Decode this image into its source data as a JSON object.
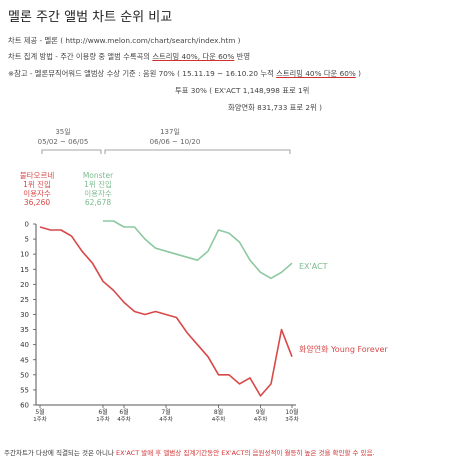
{
  "title": "멜론 주간 앨범 차트 순위 비교",
  "info": {
    "source_label": "차트 제공 - 멜론",
    "source_url": "( http://www.melon.com/chart/search/index.htm )",
    "method_prefix": "차트 집계 방법 - 주간 이용량 중 앨범 수록곡의 ",
    "method_underlined": "스트리밍 40%, 다운 60%",
    "method_suffix": " 반영",
    "note_prefix": "※참고 - 멜론뮤직어워드 앨범상 수상 기준 : 음원 70% ( 15.11.19 ~ 16.10.20 누적 ",
    "note_underlined": "스트리밍 40% 다운 60%",
    "note_suffix": " )",
    "vote_line": "투표 30% (  EX'ACT 1,148,998 표로 1위",
    "vote_line2": "화양연화   831,733 표로 2위 )"
  },
  "annotations": {
    "period1_weeks": "35일",
    "period1_range": "05/02 ~ 06/05",
    "period2_weeks": "137일",
    "period2_range": "06/06 ~ 10/20",
    "album1_name": "불타오르네",
    "album1_rank": "1위 진입",
    "album1_users_label": "이용자수",
    "album1_users": "36,260",
    "album2_name": "Monster",
    "album2_rank": "1위 진입",
    "album2_users_label": "이용자수",
    "album2_users": "62,678"
  },
  "footer": {
    "prefix": "주간차트가 다상에 직결되는 것은 아니나 ",
    "highlight": "EX'ACT 발매 후 앨범상 집계기간동안 EX'ACT의 음원성적이 월등히 높은 것을 확인할 수 있음."
  },
  "colors": {
    "red": "#d84848",
    "green": "#8cc8a0",
    "axis": "#555555"
  },
  "chart_data": {
    "type": "line",
    "y_inverted": true,
    "ylim": [
      0,
      60
    ],
    "ytick_labels": [
      "0",
      "5",
      "10",
      "15",
      "20",
      "25",
      "30",
      "35",
      "40",
      "45",
      "50",
      "55",
      "60"
    ],
    "xtick_labels": [
      {
        "month": "5월",
        "week": "1주차"
      },
      {
        "month": "6월",
        "week": "1주차"
      },
      {
        "month": "6월",
        "week": "4주차"
      },
      {
        "month": "7월",
        "week": "4주차"
      },
      {
        "month": "8월",
        "week": "4주차"
      },
      {
        "month": "9월",
        "week": "4주차"
      },
      {
        "month": "10월",
        "week": "3주차"
      }
    ],
    "series": [
      {
        "name": "화양연화 Young Forever",
        "color": "#d84848",
        "x": [
          0,
          1,
          2,
          3,
          4,
          5,
          6,
          7,
          8,
          9,
          10,
          11,
          12,
          13,
          14,
          15,
          16,
          17,
          18,
          19,
          20,
          21,
          22,
          23,
          24
        ],
        "values": [
          1,
          2,
          2,
          4,
          9,
          13,
          19,
          22,
          26,
          29,
          30,
          29,
          30,
          31,
          36,
          40,
          44,
          50,
          50,
          53,
          51,
          57,
          53,
          35,
          44
        ]
      },
      {
        "name": "EX'ACT",
        "color": "#8cc8a0",
        "x": [
          6,
          7,
          8,
          9,
          10,
          11,
          12,
          13,
          14,
          15,
          16,
          17,
          18,
          19,
          20,
          21,
          22,
          23,
          24
        ],
        "values": [
          -1,
          -1,
          1,
          1,
          5,
          8,
          9,
          10,
          11,
          12,
          9,
          2,
          3,
          6,
          12,
          16,
          18,
          16,
          13
        ]
      }
    ]
  }
}
